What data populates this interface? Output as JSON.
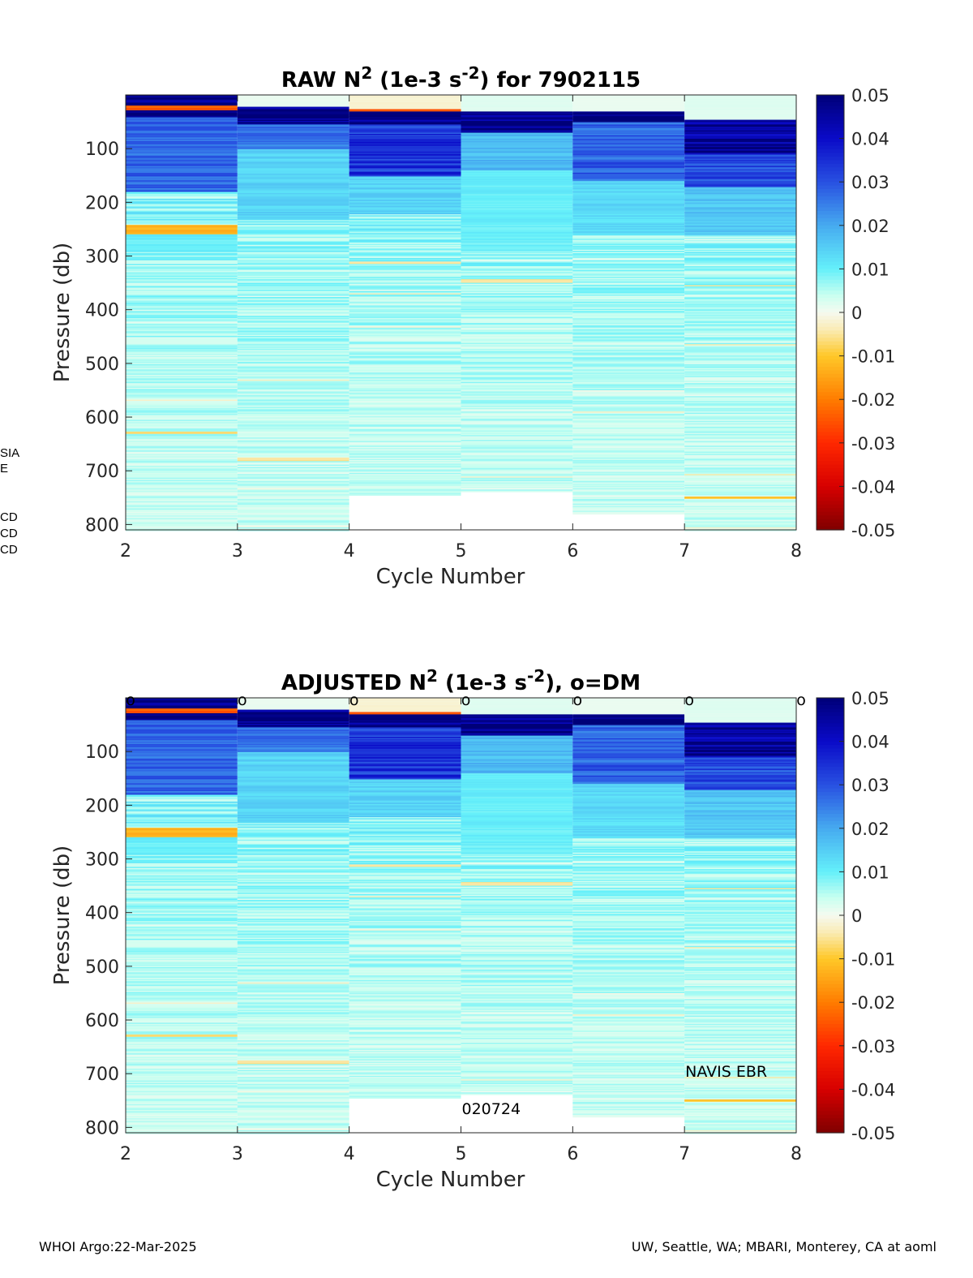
{
  "chart_data": [
    {
      "type": "heatmap",
      "title": {
        "prefix": "RAW N",
        "sup1": "2",
        "mid": " (1e-3 s",
        "sup2": "-2",
        "suffix": ") for 7902115"
      },
      "xlabel": "Cycle Number",
      "ylabel": "Pressure (db)",
      "xlim": [
        2,
        8
      ],
      "ylim": [
        0,
        810
      ],
      "y_reversed": true,
      "xticks": [
        "2",
        "3",
        "4",
        "5",
        "6",
        "7",
        "8"
      ],
      "yticks": [
        "100",
        "200",
        "300",
        "400",
        "500",
        "600",
        "700",
        "800"
      ],
      "colorbar": {
        "clim": [
          -0.05,
          0.05
        ],
        "ticks": [
          "0.05",
          "0.04",
          "0.03",
          "0.02",
          "0.01",
          "0",
          "-0.01",
          "-0.02",
          "-0.03",
          "-0.04",
          "-0.05"
        ]
      },
      "cycles": [
        2,
        3,
        4,
        5,
        6,
        7
      ],
      "max_pressure": [
        810,
        810,
        745,
        738,
        780,
        810
      ],
      "dm_markers": [],
      "annotations": [],
      "bands": [
        {
          "cycle": 2,
          "p": [
            0,
            18
          ],
          "v": 0.05
        },
        {
          "cycle": 2,
          "p": [
            18,
            27
          ],
          "v": -0.025
        },
        {
          "cycle": 2,
          "p": [
            27,
            40
          ],
          "v": 0.048
        },
        {
          "cycle": 2,
          "p": [
            40,
            180
          ],
          "v": 0.028
        },
        {
          "cycle": 2,
          "p": [
            240,
            258
          ],
          "v": -0.012
        },
        {
          "cycle": 2,
          "p": [
            258,
            290
          ],
          "v": 0.01
        },
        {
          "cycle": 2,
          "p": [
            625,
            630
          ],
          "v": -0.006
        },
        {
          "cycle": 3,
          "p": [
            0,
            20
          ],
          "v": 0.001
        },
        {
          "cycle": 3,
          "p": [
            20,
            55
          ],
          "v": 0.05
        },
        {
          "cycle": 3,
          "p": [
            55,
            100
          ],
          "v": 0.026
        },
        {
          "cycle": 3,
          "p": [
            100,
            230
          ],
          "v": 0.014
        },
        {
          "cycle": 3,
          "p": [
            675,
            680
          ],
          "v": -0.005
        },
        {
          "cycle": 4,
          "p": [
            0,
            25
          ],
          "v": -0.002
        },
        {
          "cycle": 4,
          "p": [
            25,
            30
          ],
          "v": -0.022
        },
        {
          "cycle": 4,
          "p": [
            30,
            55
          ],
          "v": 0.05
        },
        {
          "cycle": 4,
          "p": [
            55,
            150
          ],
          "v": 0.034
        },
        {
          "cycle": 4,
          "p": [
            150,
            220
          ],
          "v": 0.014
        },
        {
          "cycle": 4,
          "p": [
            308,
            313
          ],
          "v": -0.005
        },
        {
          "cycle": 5,
          "p": [
            0,
            30
          ],
          "v": 0.002
        },
        {
          "cycle": 5,
          "p": [
            30,
            70
          ],
          "v": 0.05
        },
        {
          "cycle": 5,
          "p": [
            70,
            140
          ],
          "v": 0.018
        },
        {
          "cycle": 5,
          "p": [
            140,
            280
          ],
          "v": 0.01
        },
        {
          "cycle": 5,
          "p": [
            343,
            348
          ],
          "v": -0.005
        },
        {
          "cycle": 6,
          "p": [
            0,
            30
          ],
          "v": 0.001
        },
        {
          "cycle": 6,
          "p": [
            30,
            50
          ],
          "v": 0.048
        },
        {
          "cycle": 6,
          "p": [
            50,
            160
          ],
          "v": 0.028
        },
        {
          "cycle": 6,
          "p": [
            160,
            260
          ],
          "v": 0.013
        },
        {
          "cycle": 7,
          "p": [
            0,
            45
          ],
          "v": 0.002
        },
        {
          "cycle": 7,
          "p": [
            45,
            110
          ],
          "v": 0.046
        },
        {
          "cycle": 7,
          "p": [
            110,
            170
          ],
          "v": 0.032
        },
        {
          "cycle": 7,
          "p": [
            170,
            260
          ],
          "v": 0.016
        },
        {
          "cycle": 7,
          "p": [
            352,
            356
          ],
          "v": -0.006
        },
        {
          "cycle": 7,
          "p": [
            748,
            752
          ],
          "v": -0.01
        }
      ]
    },
    {
      "type": "heatmap",
      "title": {
        "prefix": "ADJUSTED N",
        "sup1": "2",
        "mid": " (1e-3 s",
        "sup2": "-2",
        "suffix": "), o=DM"
      },
      "xlabel": "Cycle Number",
      "ylabel": "Pressure (db)",
      "xlim": [
        2,
        8
      ],
      "ylim": [
        0,
        810
      ],
      "y_reversed": true,
      "xticks": [
        "2",
        "3",
        "4",
        "5",
        "6",
        "7",
        "8"
      ],
      "yticks": [
        "100",
        "200",
        "300",
        "400",
        "500",
        "600",
        "700",
        "800"
      ],
      "colorbar": {
        "clim": [
          -0.05,
          0.05
        ],
        "ticks": [
          "0.05",
          "0.04",
          "0.03",
          "0.02",
          "0.01",
          "0",
          "-0.01",
          "-0.02",
          "-0.03",
          "-0.04",
          "-0.05"
        ]
      },
      "cycles": [
        2,
        3,
        4,
        5,
        6,
        7
      ],
      "max_pressure": [
        810,
        810,
        745,
        738,
        780,
        810
      ],
      "dm_markers": [
        2,
        3,
        4,
        5,
        6,
        7,
        8
      ],
      "dm_marker_label": "o",
      "annotations": [
        {
          "text": "NAVIS EBR",
          "x": 7.0,
          "y": 695
        },
        {
          "text": "020724",
          "x": 5.0,
          "y": 765
        }
      ],
      "bands": [
        {
          "cycle": 2,
          "p": [
            0,
            18
          ],
          "v": 0.05
        },
        {
          "cycle": 2,
          "p": [
            18,
            27
          ],
          "v": -0.025
        },
        {
          "cycle": 2,
          "p": [
            27,
            40
          ],
          "v": 0.048
        },
        {
          "cycle": 2,
          "p": [
            40,
            180
          ],
          "v": 0.028
        },
        {
          "cycle": 2,
          "p": [
            240,
            258
          ],
          "v": -0.012
        },
        {
          "cycle": 2,
          "p": [
            258,
            290
          ],
          "v": 0.01
        },
        {
          "cycle": 2,
          "p": [
            625,
            630
          ],
          "v": -0.006
        },
        {
          "cycle": 3,
          "p": [
            0,
            20
          ],
          "v": 0.001
        },
        {
          "cycle": 3,
          "p": [
            20,
            55
          ],
          "v": 0.05
        },
        {
          "cycle": 3,
          "p": [
            55,
            100
          ],
          "v": 0.026
        },
        {
          "cycle": 3,
          "p": [
            100,
            230
          ],
          "v": 0.014
        },
        {
          "cycle": 3,
          "p": [
            675,
            680
          ],
          "v": -0.005
        },
        {
          "cycle": 4,
          "p": [
            0,
            25
          ],
          "v": -0.002
        },
        {
          "cycle": 4,
          "p": [
            25,
            30
          ],
          "v": -0.022
        },
        {
          "cycle": 4,
          "p": [
            30,
            55
          ],
          "v": 0.05
        },
        {
          "cycle": 4,
          "p": [
            55,
            150
          ],
          "v": 0.034
        },
        {
          "cycle": 4,
          "p": [
            150,
            220
          ],
          "v": 0.014
        },
        {
          "cycle": 4,
          "p": [
            308,
            313
          ],
          "v": -0.005
        },
        {
          "cycle": 5,
          "p": [
            0,
            30
          ],
          "v": 0.002
        },
        {
          "cycle": 5,
          "p": [
            30,
            70
          ],
          "v": 0.05
        },
        {
          "cycle": 5,
          "p": [
            70,
            140
          ],
          "v": 0.018
        },
        {
          "cycle": 5,
          "p": [
            140,
            280
          ],
          "v": 0.01
        },
        {
          "cycle": 5,
          "p": [
            343,
            348
          ],
          "v": -0.005
        },
        {
          "cycle": 6,
          "p": [
            0,
            30
          ],
          "v": 0.001
        },
        {
          "cycle": 6,
          "p": [
            30,
            50
          ],
          "v": 0.048
        },
        {
          "cycle": 6,
          "p": [
            50,
            160
          ],
          "v": 0.028
        },
        {
          "cycle": 6,
          "p": [
            160,
            260
          ],
          "v": 0.013
        },
        {
          "cycle": 7,
          "p": [
            0,
            45
          ],
          "v": 0.002
        },
        {
          "cycle": 7,
          "p": [
            45,
            110
          ],
          "v": 0.046
        },
        {
          "cycle": 7,
          "p": [
            110,
            170
          ],
          "v": 0.032
        },
        {
          "cycle": 7,
          "p": [
            170,
            260
          ],
          "v": 0.016
        },
        {
          "cycle": 7,
          "p": [
            352,
            356
          ],
          "v": -0.006
        },
        {
          "cycle": 7,
          "p": [
            748,
            752
          ],
          "v": -0.01
        }
      ]
    }
  ],
  "footer": {
    "left": "WHOI Argo:22-Mar-2025",
    "right": "UW, Seattle, WA; MBARI, Monterey, CA at aoml"
  },
  "edge_fragments": [
    "SIA",
    "E",
    "CD",
    "CD",
    "CD"
  ]
}
